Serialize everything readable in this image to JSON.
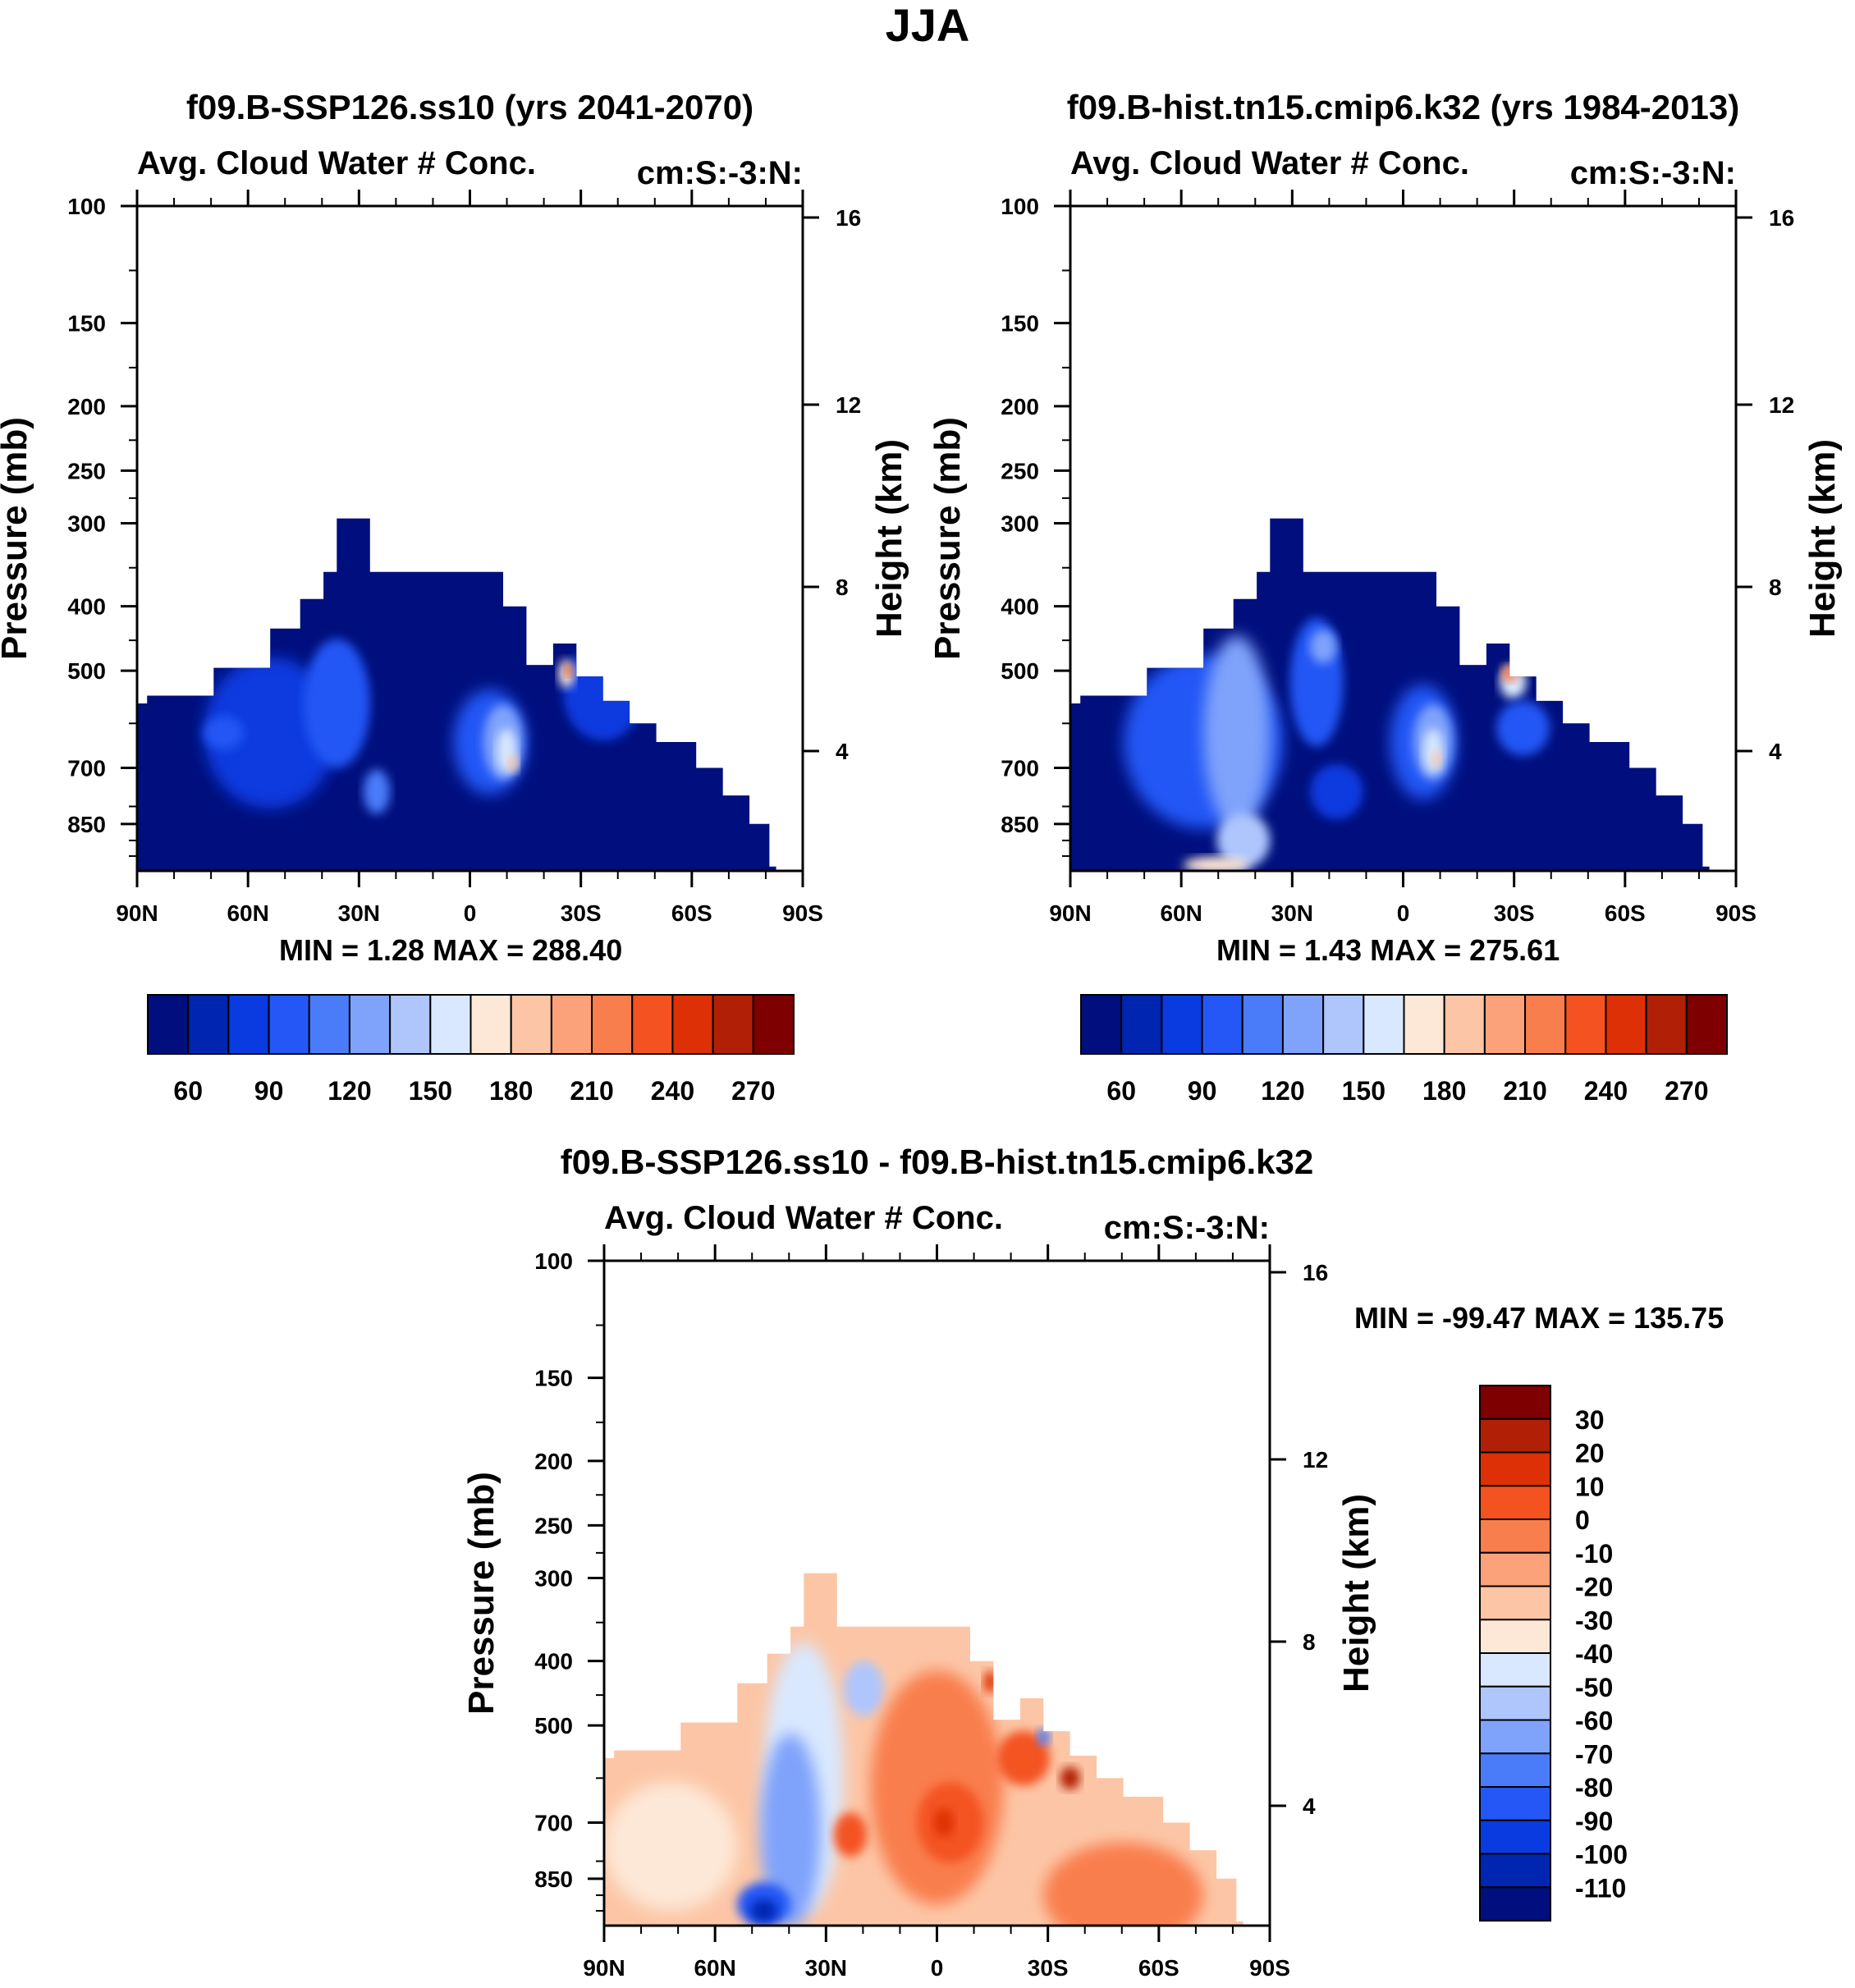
{
  "figure_title": "JJA",
  "colors": {
    "abs_scale": [
      "#000f7d",
      "#0025b0",
      "#0a3be0",
      "#2457f5",
      "#4a7cfa",
      "#7fa3fb",
      "#afc6fd",
      "#d9e8fe",
      "#fde7d6",
      "#fcc6a6",
      "#fba27b",
      "#f97e4e",
      "#f45221",
      "#de3006",
      "#b11f06",
      "#7e0000"
    ],
    "diff_scale": [
      "#000f7d",
      "#0025b0",
      "#0a3be0",
      "#2457f5",
      "#4a7cfa",
      "#7fa3fb",
      "#afc6fd",
      "#d9e8fe",
      "#fde7d6",
      "#fcc6a6",
      "#fba27b",
      "#f97e4e",
      "#f45221",
      "#de3006",
      "#b11f06",
      "#7e0000"
    ]
  },
  "chart_data": [
    {
      "type": "heatmap",
      "id": "p1",
      "title": "f09.B-SSP126.ss10 (yrs 2041-2070)",
      "left_string": "Avg. Cloud Water # Conc.",
      "right_string": "cm:S:-3:N:",
      "xlabel": "",
      "ylabel": "Pressure (mb)",
      "y2label": "Height (km)",
      "xticks": [
        "90N",
        "60N",
        "30N",
        "0",
        "30S",
        "60S",
        "90S"
      ],
      "yticks": [
        "100",
        "150",
        "200",
        "250",
        "300",
        "400",
        "500",
        "700",
        "850"
      ],
      "y2ticks": [
        "16",
        "12",
        "8",
        "4"
      ],
      "stats": {
        "min_label": "MIN =",
        "min": "1.28",
        "max_label": "MAX =",
        "max": "288.40"
      },
      "colorbar": {
        "orientation": "horizontal",
        "labels": [
          "60",
          "90",
          "120",
          "150",
          "180",
          "210",
          "240",
          "270"
        ]
      },
      "ylim_mb": [
        100,
        1000
      ]
    },
    {
      "type": "heatmap",
      "id": "p2",
      "title": "f09.B-hist.tn15.cmip6.k32 (yrs 1984-2013)",
      "left_string": "Avg. Cloud Water # Conc.",
      "right_string": "cm:S:-3:N:",
      "xlabel": "",
      "ylabel": "Pressure (mb)",
      "y2label": "Height (km)",
      "xticks": [
        "90N",
        "60N",
        "30N",
        "0",
        "30S",
        "60S",
        "90S"
      ],
      "yticks": [
        "100",
        "150",
        "200",
        "250",
        "300",
        "400",
        "500",
        "700",
        "850"
      ],
      "y2ticks": [
        "16",
        "12",
        "8",
        "4"
      ],
      "stats": {
        "min_label": "MIN =",
        "min": "1.43",
        "max_label": "MAX =",
        "max": "275.61"
      },
      "colorbar": {
        "orientation": "horizontal",
        "labels": [
          "60",
          "90",
          "120",
          "150",
          "180",
          "210",
          "240",
          "270"
        ]
      },
      "ylim_mb": [
        100,
        1000
      ]
    },
    {
      "type": "heatmap",
      "id": "p3",
      "title": "f09.B-SSP126.ss10 - f09.B-hist.tn15.cmip6.k32",
      "left_string": "Avg. Cloud Water # Conc.",
      "right_string": "cm:S:-3:N:",
      "xlabel": "",
      "ylabel": "Pressure (mb)",
      "y2label": "Height (km)",
      "xticks": [
        "90N",
        "60N",
        "30N",
        "0",
        "30S",
        "60S",
        "90S"
      ],
      "yticks": [
        "100",
        "150",
        "200",
        "250",
        "300",
        "400",
        "500",
        "700",
        "850"
      ],
      "y2ticks": [
        "16",
        "12",
        "8",
        "4"
      ],
      "stats": {
        "min_label": "MIN =",
        "min": "-99.47",
        "max_label": "MAX =",
        "max": "135.75"
      },
      "colorbar": {
        "orientation": "vertical",
        "labels": [
          "30",
          "20",
          "10",
          "0",
          "-10",
          "-20",
          "-30",
          "-40",
          "-50",
          "-60",
          "-70",
          "-80",
          "-90",
          "-100",
          "-110"
        ]
      },
      "ylim_mb": [
        100,
        1000
      ]
    }
  ]
}
